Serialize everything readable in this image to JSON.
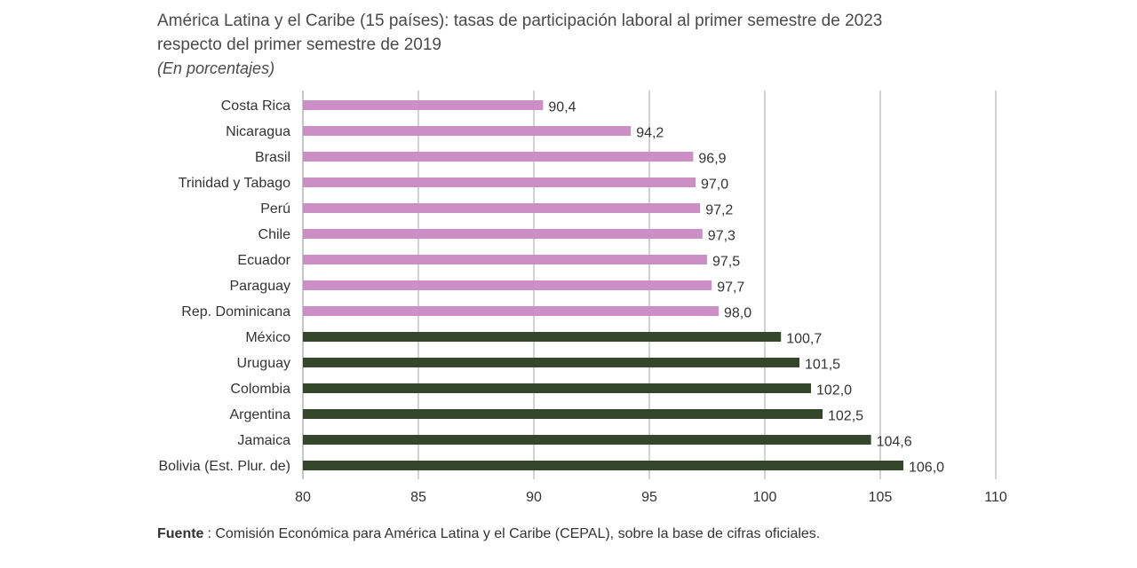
{
  "header": {
    "title": "América Latina y el Caribe (15 países): tasas de participación laboral al primer semestre de 2023 respecto del primer semestre de 2019",
    "subtitle": "(En porcentajes)"
  },
  "chart_data": {
    "type": "bar",
    "orientation": "horizontal",
    "title": "América Latina y el Caribe (15 países): tasas de participación laboral al primer semestre de 2023 respecto del primer semestre de 2019",
    "subtitle": "(En porcentajes)",
    "xlim": [
      80,
      110
    ],
    "x_ticks": [
      80,
      85,
      90,
      95,
      100,
      105,
      110
    ],
    "grid": "vertical",
    "categories": [
      "Costa Rica",
      "Nicaragua",
      "Brasil",
      "Trinidad y Tabago",
      "Perú",
      "Chile",
      "Ecuador",
      "Paraguay",
      "Rep. Dominicana",
      "México",
      "Uruguay",
      "Colombia",
      "Argentina",
      "Jamaica",
      "Bolivia (Est. Plur. de)"
    ],
    "values": [
      90.4,
      94.2,
      96.9,
      97.0,
      97.2,
      97.3,
      97.5,
      97.7,
      98.0,
      100.7,
      101.5,
      102.0,
      102.5,
      104.6,
      106.0
    ],
    "value_labels": [
      "90,4",
      "94,2",
      "96,9",
      "97,0",
      "97,2",
      "97,3",
      "97,5",
      "97,7",
      "98,0",
      "100,7",
      "101,5",
      "102,0",
      "102,5",
      "104,6",
      "106,0"
    ],
    "colors": {
      "below_100": "#cc8fc5",
      "above_100": "#34472a",
      "grid": "#a6a6a6",
      "axis": "#8c8c8c"
    }
  },
  "footer": {
    "source_label": "Fuente",
    "source_text": ": Comisión Económica para América Latina y el Caribe (CEPAL), sobre la base de cifras oficiales."
  }
}
